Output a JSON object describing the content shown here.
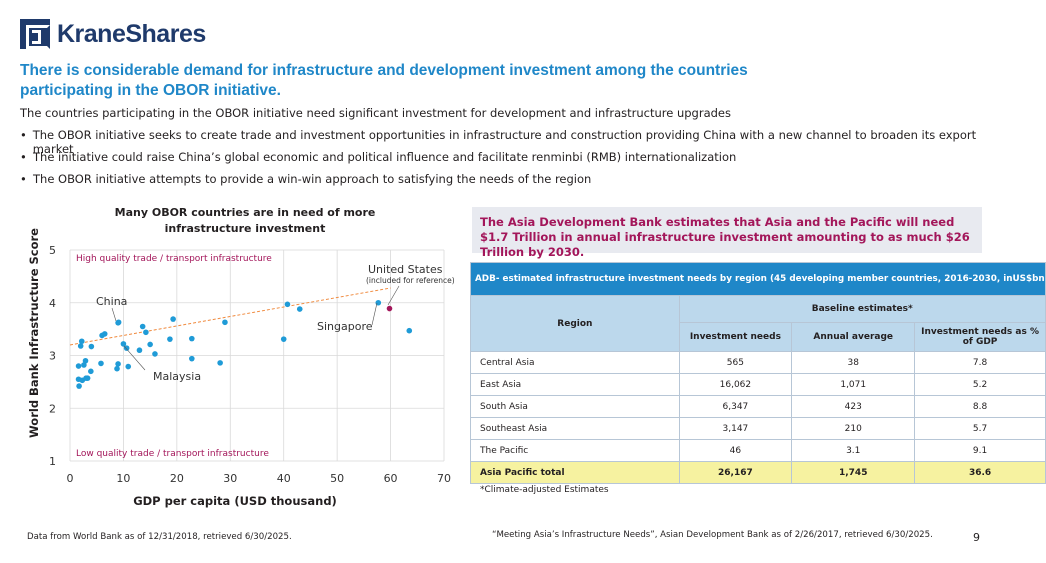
{
  "brand": {
    "name": "KraneShares",
    "color": "#1f3a6b"
  },
  "headline": "There is considerable demand for infrastructure and development investment among the countries participating in the OBOR initiative.",
  "intro": "The countries participating in the OBOR initiative need significant investment for development and infrastructure upgrades",
  "bullets": [
    "The OBOR initiative seeks to create trade and investment opportunities in infrastructure and construction providing China with a new channel to broaden its export market",
    "The initiative could raise China’s global economic and political influence and facilitate renminbi (RMB) internationalization",
    "The OBOR initiative attempts to provide a win-win approach to satisfying the needs of the region"
  ],
  "chart": {
    "title": "Many OBOR countries are in need of more infrastructure investment",
    "high_label": "High quality trade / transport infrastructure",
    "low_label": "Low quality trade / transport infrastructure",
    "annotations": {
      "us": "United States",
      "us_note": "(included for reference)",
      "china": "China",
      "singapore": "Singapore",
      "malaysia": "Malaysia"
    }
  },
  "chart_data": {
    "type": "scatter",
    "xlabel": "GDP per capita (USD thousand)",
    "ylabel": "World Bank Infrastructure Score",
    "xlim": [
      0,
      70
    ],
    "ylim": [
      1,
      5
    ],
    "xticks": [
      "0",
      "10",
      "20",
      "30",
      "40",
      "50",
      "60",
      "70"
    ],
    "yticks": [
      "1",
      "2",
      "3",
      "4",
      "5"
    ],
    "grid": true,
    "trendline": {
      "x": [
        0,
        60
      ],
      "y": [
        3.2,
        4.28
      ]
    },
    "points": [
      {
        "x": 1.6,
        "y": 2.8
      },
      {
        "x": 1.6,
        "y": 2.55
      },
      {
        "x": 1.7,
        "y": 2.42
      },
      {
        "x": 2.0,
        "y": 3.18
      },
      {
        "x": 2.2,
        "y": 3.27
      },
      {
        "x": 2.3,
        "y": 2.53
      },
      {
        "x": 2.6,
        "y": 2.82
      },
      {
        "x": 2.9,
        "y": 2.9
      },
      {
        "x": 3.0,
        "y": 2.57
      },
      {
        "x": 3.3,
        "y": 2.57
      },
      {
        "x": 3.9,
        "y": 2.7
      },
      {
        "x": 4.0,
        "y": 3.17
      },
      {
        "x": 5.8,
        "y": 2.85
      },
      {
        "x": 6.0,
        "y": 3.38
      },
      {
        "x": 6.5,
        "y": 3.41
      },
      {
        "x": 8.8,
        "y": 2.75
      },
      {
        "x": 9.0,
        "y": 2.84
      },
      {
        "x": 9.0,
        "y": 3.62
      },
      {
        "x": 9.1,
        "y": 3.63
      },
      {
        "x": 10.0,
        "y": 3.22
      },
      {
        "x": 10.6,
        "y": 3.14
      },
      {
        "x": 10.9,
        "y": 2.79
      },
      {
        "x": 13.0,
        "y": 3.1
      },
      {
        "x": 13.6,
        "y": 3.55
      },
      {
        "x": 14.2,
        "y": 3.44
      },
      {
        "x": 15.0,
        "y": 3.21
      },
      {
        "x": 15.9,
        "y": 3.03
      },
      {
        "x": 18.7,
        "y": 3.31
      },
      {
        "x": 19.3,
        "y": 3.69
      },
      {
        "x": 22.8,
        "y": 3.32
      },
      {
        "x": 22.8,
        "y": 2.94
      },
      {
        "x": 28.1,
        "y": 2.86
      },
      {
        "x": 29.0,
        "y": 3.63
      },
      {
        "x": 40.0,
        "y": 3.31
      },
      {
        "x": 40.7,
        "y": 3.97
      },
      {
        "x": 43.0,
        "y": 3.88
      },
      {
        "x": 57.7,
        "y": 4.0
      },
      {
        "x": 63.5,
        "y": 3.47
      }
    ],
    "highlight": {
      "x": 59.8,
      "y": 3.89
    },
    "point_color": "#1f9bd7",
    "highlight_color": "#a3165a",
    "trend_color": "#f08a3e"
  },
  "adb": {
    "summary": "The Asia Development Bank estimates that Asia and the Pacific will need $1.7 Trillion in annual infrastructure investment amounting to as much $26 Trillion by 2030.",
    "table_title": "ADB- estimated infrastructure investment needs by region (45 developing member countries, 2016-2030, inUS$bn",
    "region_header": "Region",
    "group_header": "Baseline estimates*",
    "col_headers": [
      "Investment needs",
      "Annual average",
      "Investment needs as % of GDP"
    ],
    "rows": [
      {
        "region": "Central Asia",
        "needs": "565",
        "annual": "38",
        "pct": "7.8"
      },
      {
        "region": "East Asia",
        "needs": "16,062",
        "annual": "1,071",
        "pct": "5.2"
      },
      {
        "region": "South Asia",
        "needs": "6,347",
        "annual": "423",
        "pct": "8.8"
      },
      {
        "region": "Southeast Asia",
        "needs": "3,147",
        "annual": "210",
        "pct": "5.7"
      },
      {
        "region": "The Pacific",
        "needs": "46",
        "annual": "3.1",
        "pct": "9.1"
      }
    ],
    "total": {
      "region": "Asia Pacific total",
      "needs": "26,167",
      "annual": "1,745",
      "pct": "36.6"
    },
    "footnote": "*Climate-adjusted Estimates"
  },
  "sources": {
    "left": "Data from World Bank as of 12/31/2018, retrieved 6/30/2025.",
    "right": "“Meeting Asia’s Infrastructure Needs”, Asian Development Bank as of 2/26/2017, retrieved 6/30/2025."
  },
  "page_number": "9"
}
